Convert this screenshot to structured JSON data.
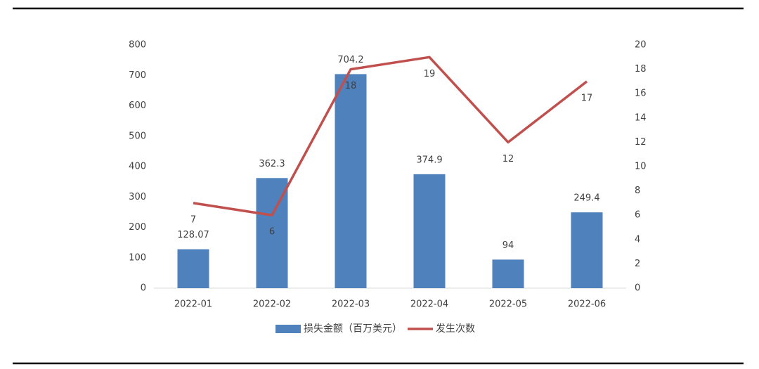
{
  "chart_data": {
    "type": "bar",
    "categories": [
      "2022-01",
      "2022-02",
      "2022-03",
      "2022-04",
      "2022-05",
      "2022-06"
    ],
    "series": [
      {
        "name": "损失金额（百万美元）",
        "type": "bar",
        "color": "#4f81bd",
        "values": [
          128.07,
          362.3,
          704.2,
          374.9,
          94,
          249.4
        ]
      },
      {
        "name": "发生次数",
        "type": "line",
        "axis": "y2",
        "color": "#c0504d",
        "values": [
          7,
          6,
          18,
          19,
          12,
          17
        ]
      }
    ],
    "ylim": [
      0,
      800
    ],
    "yticks": [
      0,
      100,
      200,
      300,
      400,
      500,
      600,
      700,
      800
    ],
    "y2lim": [
      0,
      20
    ],
    "y2ticks": [
      0,
      2,
      4,
      6,
      8,
      10,
      12,
      14,
      16,
      18,
      20
    ],
    "grid": false,
    "legend": "bottom",
    "data_labels": true
  }
}
